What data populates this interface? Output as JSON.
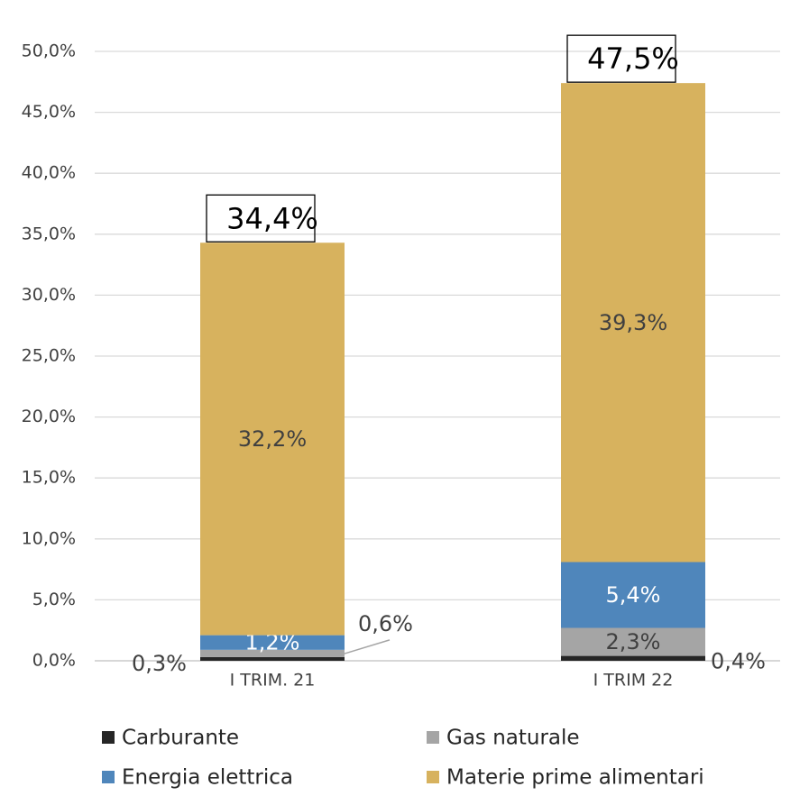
{
  "chart_data": {
    "type": "stacked_bar",
    "categories": [
      "I TRIM. 21",
      "I TRIM 22"
    ],
    "series": [
      {
        "name": "Carburante",
        "color": "#262626",
        "values": [
          0.3,
          0.4
        ],
        "value_labels": [
          "0,3%",
          "0,4%"
        ]
      },
      {
        "name": "Gas naturale",
        "color": "#a5a5a5",
        "values": [
          0.6,
          2.3
        ],
        "value_labels": [
          "0,6%",
          "2,3%"
        ]
      },
      {
        "name": "Energia elettrica",
        "color": "#4f86bb",
        "values": [
          1.2,
          5.4
        ],
        "value_labels": [
          "1,2%",
          "5,4%"
        ]
      },
      {
        "name": "Materie prime alimentari",
        "color": "#d7b25e",
        "values": [
          32.2,
          39.3
        ],
        "value_labels": [
          "32,2%",
          "39,3%"
        ]
      }
    ],
    "totals": [
      34.4,
      47.5
    ],
    "total_labels": [
      "34,4%",
      "47,5%"
    ],
    "ylim": [
      0,
      50
    ],
    "yticks": [
      {
        "value": 0,
        "label": "0,0%"
      },
      {
        "value": 5,
        "label": "5,0%"
      },
      {
        "value": 10,
        "label": "10,0%"
      },
      {
        "value": 15,
        "label": "15,0%"
      },
      {
        "value": 20,
        "label": "20,0%"
      },
      {
        "value": 25,
        "label": "25,0%"
      },
      {
        "value": 30,
        "label": "30,0%"
      },
      {
        "value": 35,
        "label": "35,0%"
      },
      {
        "value": 40,
        "label": "40,0%"
      },
      {
        "value": 45,
        "label": "45,0%"
      },
      {
        "value": 50,
        "label": "50,0%"
      }
    ],
    "grid": true,
    "legend": "bottom"
  }
}
